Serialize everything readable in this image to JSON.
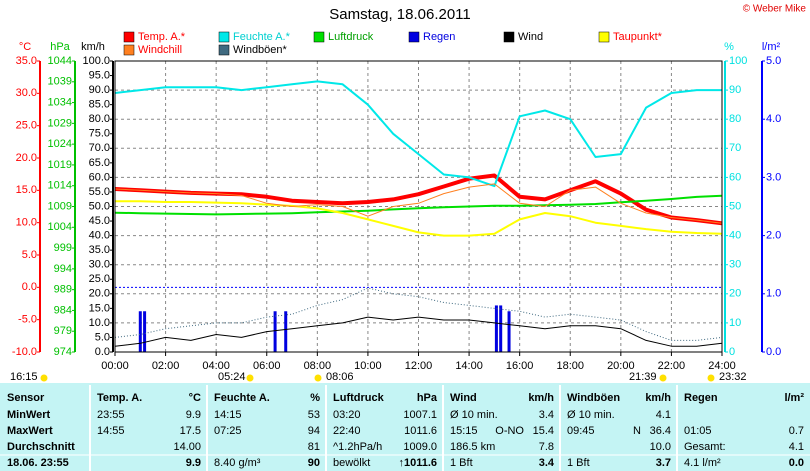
{
  "chart_data": {
    "type": "line",
    "title": "Samstag, 18.06.2011",
    "copyright": "© Weber Mike",
    "grid": true,
    "frost_line": true,
    "x": [
      0,
      1,
      2,
      3,
      4,
      5,
      6,
      7,
      8,
      9,
      10,
      11,
      12,
      13,
      14,
      15,
      16,
      17,
      18,
      19,
      20,
      21,
      22,
      23,
      24
    ],
    "xlim": [
      0,
      24
    ],
    "xticks": [
      {
        "value": 0,
        "label": "00:00"
      },
      {
        "value": 2,
        "label": "02:00"
      },
      {
        "value": 4,
        "label": "04:00"
      },
      {
        "value": 6,
        "label": "06:00"
      },
      {
        "value": 8,
        "label": "08:00"
      },
      {
        "value": 10,
        "label": "10:00"
      },
      {
        "value": 12,
        "label": "12:00"
      },
      {
        "value": 14,
        "label": "14:00"
      },
      {
        "value": 16,
        "label": "16:00"
      },
      {
        "value": 18,
        "label": "18:00"
      },
      {
        "value": 20,
        "label": "20:00"
      },
      {
        "value": 22,
        "label": "22:00"
      },
      {
        "value": 24,
        "label": "24:00"
      }
    ],
    "axes": [
      {
        "label": "°C",
        "color": "#ff0000",
        "lim": [
          -10,
          35
        ],
        "ticks": [
          {
            "value": 35,
            "label": "35.0"
          },
          {
            "value": 30,
            "label": "30.0"
          },
          {
            "value": 25,
            "label": "25.0"
          },
          {
            "value": 20,
            "label": "20.0"
          },
          {
            "value": 15,
            "label": "15.0"
          },
          {
            "value": 10,
            "label": "10.0"
          },
          {
            "value": 5,
            "label": "5.0"
          },
          {
            "value": 0,
            "label": "0.0"
          },
          {
            "value": -5,
            "label": "-5.0"
          },
          {
            "value": -10,
            "label": "-10.0"
          }
        ]
      },
      {
        "label": "hPa",
        "color": "#00c000",
        "lim": [
          974,
          1044
        ],
        "ticks": [
          1044,
          1039,
          1034,
          1029,
          1024,
          1019,
          1014,
          1009,
          1004,
          999,
          994,
          989,
          984,
          979,
          974
        ]
      },
      {
        "label": "km/h",
        "color": "#000000",
        "lim": [
          0,
          100
        ],
        "ticks": [
          {
            "value": 100,
            "label": "100.0"
          },
          {
            "value": 95,
            "label": "95.0"
          },
          {
            "value": 90,
            "label": "90.0"
          },
          {
            "value": 85,
            "label": "85.0"
          },
          {
            "value": 80,
            "label": "80.0"
          },
          {
            "value": 75,
            "label": "75.0"
          },
          {
            "value": 70,
            "label": "70.0"
          },
          {
            "value": 65,
            "label": "65.0"
          },
          {
            "value": 60,
            "label": "60.0"
          },
          {
            "value": 55,
            "label": "55.0"
          },
          {
            "value": 50,
            "label": "50.0"
          },
          {
            "value": 45,
            "label": "45.0"
          },
          {
            "value": 40,
            "label": "40.0"
          },
          {
            "value": 35,
            "label": "35.0"
          },
          {
            "value": 30,
            "label": "30.0"
          },
          {
            "value": 25,
            "label": "25.0"
          },
          {
            "value": 20,
            "label": "20.0"
          },
          {
            "value": 15,
            "label": "15.0"
          },
          {
            "value": 10,
            "label": "10.0"
          },
          {
            "value": 5,
            "label": "5.0"
          },
          {
            "value": 0,
            "label": "0.0"
          }
        ]
      },
      {
        "label": "%",
        "color": "#00e0e0",
        "lim": [
          0,
          100
        ],
        "ticks": [
          100,
          90,
          80,
          70,
          60,
          50,
          40,
          30,
          20,
          10,
          0
        ]
      },
      {
        "label": "l/m²",
        "color": "#0000ff",
        "lim": [
          0,
          5
        ],
        "ticks": [
          {
            "value": 5,
            "label": "5.0"
          },
          {
            "value": 4,
            "label": "4.0"
          },
          {
            "value": 3,
            "label": "3.0"
          },
          {
            "value": 2,
            "label": "2.0"
          },
          {
            "value": 1,
            "label": "1.0"
          },
          {
            "value": 0,
            "label": "0.0"
          }
        ]
      }
    ],
    "series": [
      {
        "name": "Temp. A.*",
        "color": "#ff0000",
        "text_color": "#ff0000",
        "axis": 0,
        "width": 4,
        "values": [
          15.2,
          15.0,
          14.8,
          14.6,
          14.5,
          14.4,
          14.0,
          13.4,
          13.2,
          13.0,
          13.2,
          13.6,
          14.4,
          15.6,
          16.8,
          17.3,
          14.0,
          13.6,
          15.0,
          16.4,
          14.5,
          12.0,
          10.8,
          10.4,
          9.9
        ]
      },
      {
        "name": "Feuchte A.*",
        "color": "#00e8e8",
        "text_color": "#00d0d0",
        "axis": 3,
        "width": 2,
        "values": [
          89,
          90,
          91,
          91,
          91,
          90,
          91,
          92,
          93,
          92,
          85,
          75,
          68,
          61,
          60,
          57,
          81,
          83,
          80,
          67,
          68,
          84,
          89,
          90,
          90
        ]
      },
      {
        "name": "Luftdruck",
        "color": "#00e000",
        "text_color": "#00a000",
        "axis": 1,
        "width": 2,
        "values": [
          1007.5,
          1007.4,
          1007.3,
          1007.2,
          1007.1,
          1007.2,
          1007.3,
          1007.4,
          1007.6,
          1007.8,
          1008.0,
          1008.3,
          1008.6,
          1008.8,
          1009.0,
          1009.2,
          1009.2,
          1009.3,
          1009.4,
          1009.6,
          1010.0,
          1010.4,
          1010.8,
          1011.3,
          1011.6
        ]
      },
      {
        "name": "Regen",
        "color": "#0000e0",
        "text_color": "#0000e0",
        "axis": 4,
        "bars": true,
        "x": [
          1.0,
          1.17,
          6.33,
          6.75,
          15.08,
          15.25,
          15.58
        ],
        "values": [
          0.7,
          0.7,
          0.7,
          0.7,
          0.8,
          0.8,
          0.7
        ]
      },
      {
        "name": "Wind",
        "color": "#000000",
        "text_color": "#000000",
        "axis": 2,
        "width": 1,
        "values": [
          2,
          3,
          5,
          4,
          6,
          5,
          7,
          8,
          9,
          10,
          12,
          11,
          12,
          11,
          11,
          10,
          9,
          8,
          9,
          9,
          8,
          4,
          2,
          2,
          3
        ]
      },
      {
        "name": "Taupunkt*",
        "color": "#ffff00",
        "text_color": "#ff0000",
        "axis": 0,
        "width": 2,
        "values": [
          13.3,
          13.3,
          13.2,
          13.2,
          13.1,
          13.0,
          12.8,
          12.6,
          12.2,
          11.5,
          10.5,
          9.5,
          8.5,
          8.0,
          8.0,
          8.3,
          10.5,
          11.5,
          11.0,
          10.0,
          9.5,
          9.0,
          8.6,
          8.4,
          8.3
        ]
      },
      {
        "name": "Windchill",
        "color": "#ff8020",
        "text_color": "#ff0000",
        "axis": 0,
        "width": 1,
        "values": [
          15.2,
          15.0,
          14.8,
          14.6,
          14.5,
          14.2,
          13.0,
          12.5,
          12.8,
          12.5,
          11.0,
          12.5,
          13.0,
          14.5,
          15.5,
          16.0,
          13.0,
          12.5,
          15.0,
          15.5,
          13.0,
          11.5,
          10.8,
          10.4,
          9.9
        ]
      },
      {
        "name": "Windböen*",
        "color": "#406a80",
        "text_color": "#000000",
        "axis": 2,
        "width": 1,
        "dotted": true,
        "values": [
          5,
          6,
          8,
          9,
          10,
          10,
          12,
          13,
          16,
          18,
          22,
          20,
          19,
          17,
          16,
          15,
          14,
          12,
          13,
          12,
          11,
          7,
          4,
          4,
          5
        ]
      }
    ],
    "astro": [
      "16:15",
      "05:24",
      "08:06",
      "21:39",
      "23:32"
    ]
  },
  "table": {
    "header": [
      [
        "Sensor"
      ],
      [
        "Temp. A.",
        "°C"
      ],
      [
        "Feuchte A.",
        "%"
      ],
      [
        "Luftdruck",
        "hPa"
      ],
      [
        "Wind",
        "km/h"
      ],
      [
        "Windböen",
        "km/h"
      ],
      [
        "Regen",
        "l/m²"
      ]
    ],
    "rows": [
      [
        [
          "MinWert"
        ],
        [
          "23:55",
          "9.9"
        ],
        [
          "14:15",
          "53"
        ],
        [
          "03:20",
          "1007.1"
        ],
        [
          "Ø 10 min.",
          "3.4"
        ],
        [
          "Ø 10 min.",
          "4.1"
        ],
        []
      ],
      [
        [
          "MaxWert"
        ],
        [
          "14:55",
          "17.5"
        ],
        [
          "07:25",
          "94"
        ],
        [
          "22:40",
          "1011.6"
        ],
        [
          "15:15",
          "O-NO",
          "15.4"
        ],
        [
          "09:45",
          "N",
          "36.4"
        ],
        [
          "01:05",
          "0.7"
        ]
      ],
      [
        [
          "Durchschnitt"
        ],
        [
          "14.00"
        ],
        [
          "81"
        ],
        [
          "^1.2hPa/h",
          "1009.0"
        ],
        [
          "186.5 km",
          "7.8"
        ],
        [
          "10.0"
        ],
        [
          "Gesamt:",
          "4.1"
        ]
      ],
      [
        [
          "18.06. 23:55"
        ],
        [
          "9.9"
        ],
        [
          "8.40 g/m³",
          "90"
        ],
        [
          "bewölkt",
          "↑1011.6"
        ],
        [
          "1 Bft",
          "3.4"
        ],
        [
          "1 Bft",
          "3.7"
        ],
        [
          "4.1 l/m²",
          "0.0"
        ]
      ]
    ]
  }
}
